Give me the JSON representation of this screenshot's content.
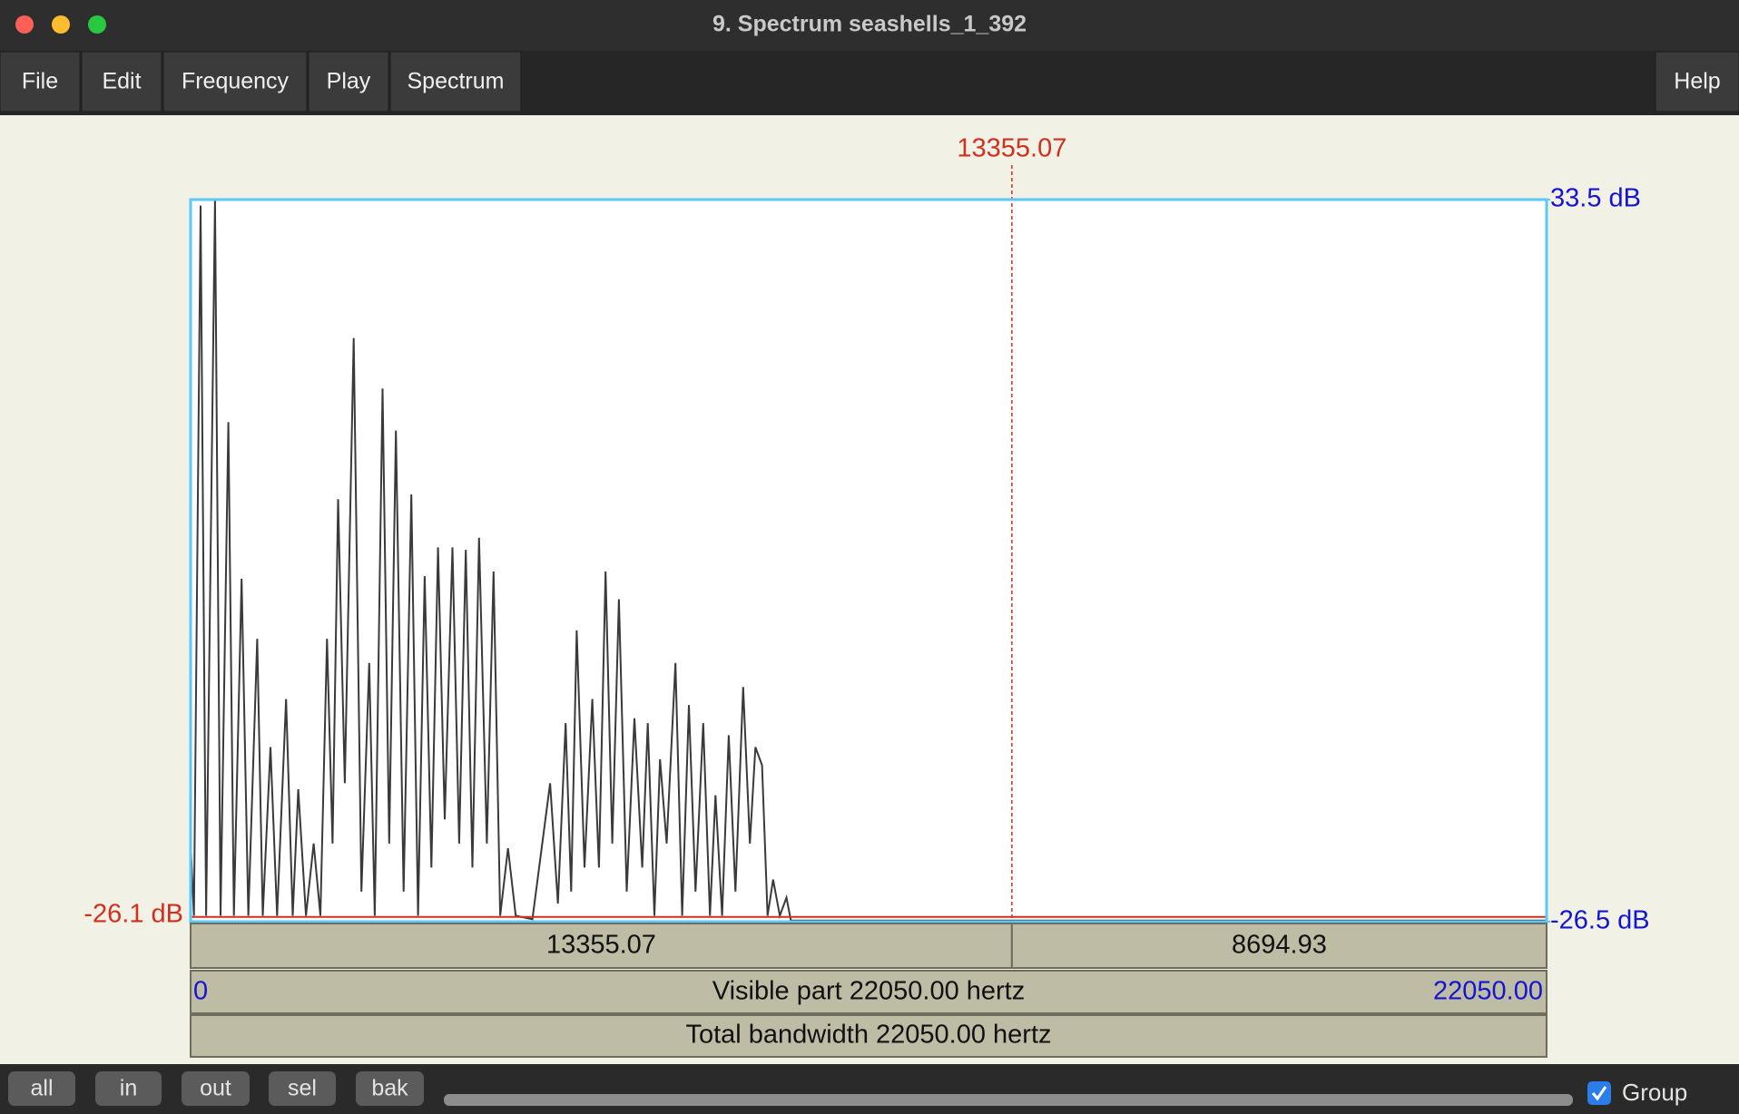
{
  "window": {
    "title": "9. Spectrum seashells_1_392"
  },
  "menu": {
    "items": [
      "File",
      "Edit",
      "Frequency",
      "Play",
      "Spectrum"
    ],
    "help": "Help"
  },
  "chart_data": {
    "type": "line",
    "color": "#3a3a3a",
    "x": [
      0,
      54,
      162,
      253,
      397,
      487,
      614,
      704,
      830,
      938,
      1083,
      1173,
      1299,
      1407,
      1552,
      1660,
      1750,
      1876,
      2002,
      2111,
      2219,
      2309,
      2399,
      2508,
      2652,
      2778,
      2904,
      2995,
      3121,
      3230,
      3338,
      3464,
      3590,
      3699,
      3807,
      3916,
      4024,
      4132,
      4258,
      4367,
      4475,
      4583,
      4691,
      4818,
      4926,
      5034,
      5161,
      5287,
      5558,
      5846,
      5973,
      6099,
      6189,
      6279,
      6406,
      6532,
      6640,
      6748,
      6857,
      6965,
      7091,
      7217,
      7344,
      7434,
      7542,
      7633,
      7741,
      7885,
      7993,
      8102,
      8210,
      8336,
      8445,
      8535,
      8643,
      8751,
      8860,
      8986,
      9094,
      9184,
      9293,
      9383,
      9473,
      9581,
      9689,
      9761,
      22050
    ],
    "values": [
      -20,
      -26,
      33,
      -26,
      33.5,
      -26,
      15,
      -26,
      2,
      -26,
      -3,
      -26,
      -12,
      -26,
      -8,
      -26,
      -15.5,
      -26,
      -20,
      -26,
      -3,
      -20,
      8.6,
      -15,
      22,
      -24,
      -5,
      -26,
      17.8,
      -20,
      14.3,
      -24,
      9,
      -26,
      2.2,
      -22,
      4.6,
      -18,
      4.6,
      -20,
      4.4,
      -22,
      5.4,
      -20,
      2.6,
      -26,
      -20.4,
      -26,
      -26.3,
      -15,
      -25,
      -10,
      -24,
      -2.3,
      -22,
      -8,
      -22,
      2.6,
      -20,
      0.3,
      -24,
      -9.6,
      -22,
      -10,
      -26,
      -13,
      -20,
      -5,
      -26,
      -8.5,
      -24,
      -10,
      -26,
      -16,
      -26,
      -11,
      -24,
      -7,
      -20,
      -12,
      -13.5,
      -26,
      -23,
      -26,
      -24.5,
      -26.4,
      -26.4
    ],
    "xlim": [
      0,
      22050
    ],
    "ylim": [
      -26.5,
      33.5
    ],
    "yticks": [
      {
        "value": 33.5,
        "label": "33.5 dB"
      },
      {
        "value": -26.5,
        "label": "-26.5 dB"
      }
    ],
    "xticks": [
      0,
      {
        "value": 22050,
        "label": "22050.00"
      }
    ],
    "cursor": 13355.07,
    "cursor_value": {
      "value": -26.1,
      "label": "-26.1 dB"
    },
    "segments": [
      13355.07,
      8694.93
    ],
    "visible_part": "Visible part 22050.00 hertz",
    "total_bandwidth": "Total bandwidth 22050.00 hertz"
  },
  "buttons": [
    "all",
    "in",
    "out",
    "sel",
    "bak"
  ],
  "group": {
    "label": "Group",
    "checked": true
  }
}
